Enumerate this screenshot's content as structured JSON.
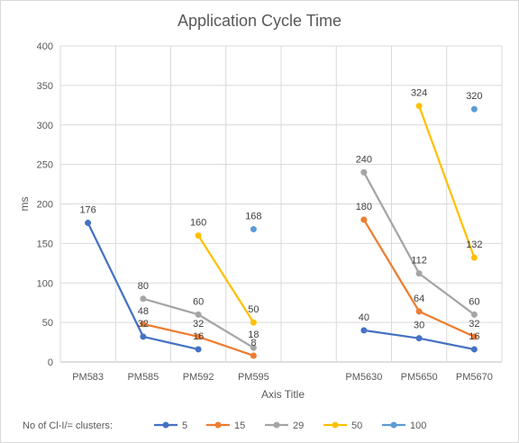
{
  "chart_data": {
    "type": "line",
    "title": "Application Cycle Time",
    "xlabel": "Axis Title",
    "ylabel": "ms",
    "ylim": [
      0,
      400
    ],
    "yticks": [
      0,
      50,
      100,
      150,
      200,
      250,
      300,
      350,
      400
    ],
    "categories": [
      "PM583",
      "PM585",
      "PM592",
      "PM595",
      "",
      "PM5630",
      "PM5650",
      "PM5670"
    ],
    "grid": true,
    "legend": {
      "title": "No of Cl-I/= clusters:",
      "placement": "bottom-left"
    },
    "series": [
      {
        "name": "5",
        "color": "#4472C4",
        "values": [
          176,
          32,
          16,
          null,
          null,
          40,
          30,
          16
        ]
      },
      {
        "name": "15",
        "color": "#ED7D31",
        "values": [
          null,
          48,
          32,
          8,
          null,
          180,
          64,
          32
        ]
      },
      {
        "name": "29",
        "color": "#A5A5A5",
        "values": [
          null,
          80,
          60,
          18,
          null,
          240,
          112,
          60
        ]
      },
      {
        "name": "50",
        "color": "#FFC000",
        "values": [
          null,
          null,
          160,
          50,
          null,
          null,
          324,
          132
        ]
      },
      {
        "name": "100",
        "color": "#5B9BD5",
        "values": [
          null,
          null,
          null,
          168,
          null,
          null,
          null,
          320
        ]
      }
    ]
  }
}
